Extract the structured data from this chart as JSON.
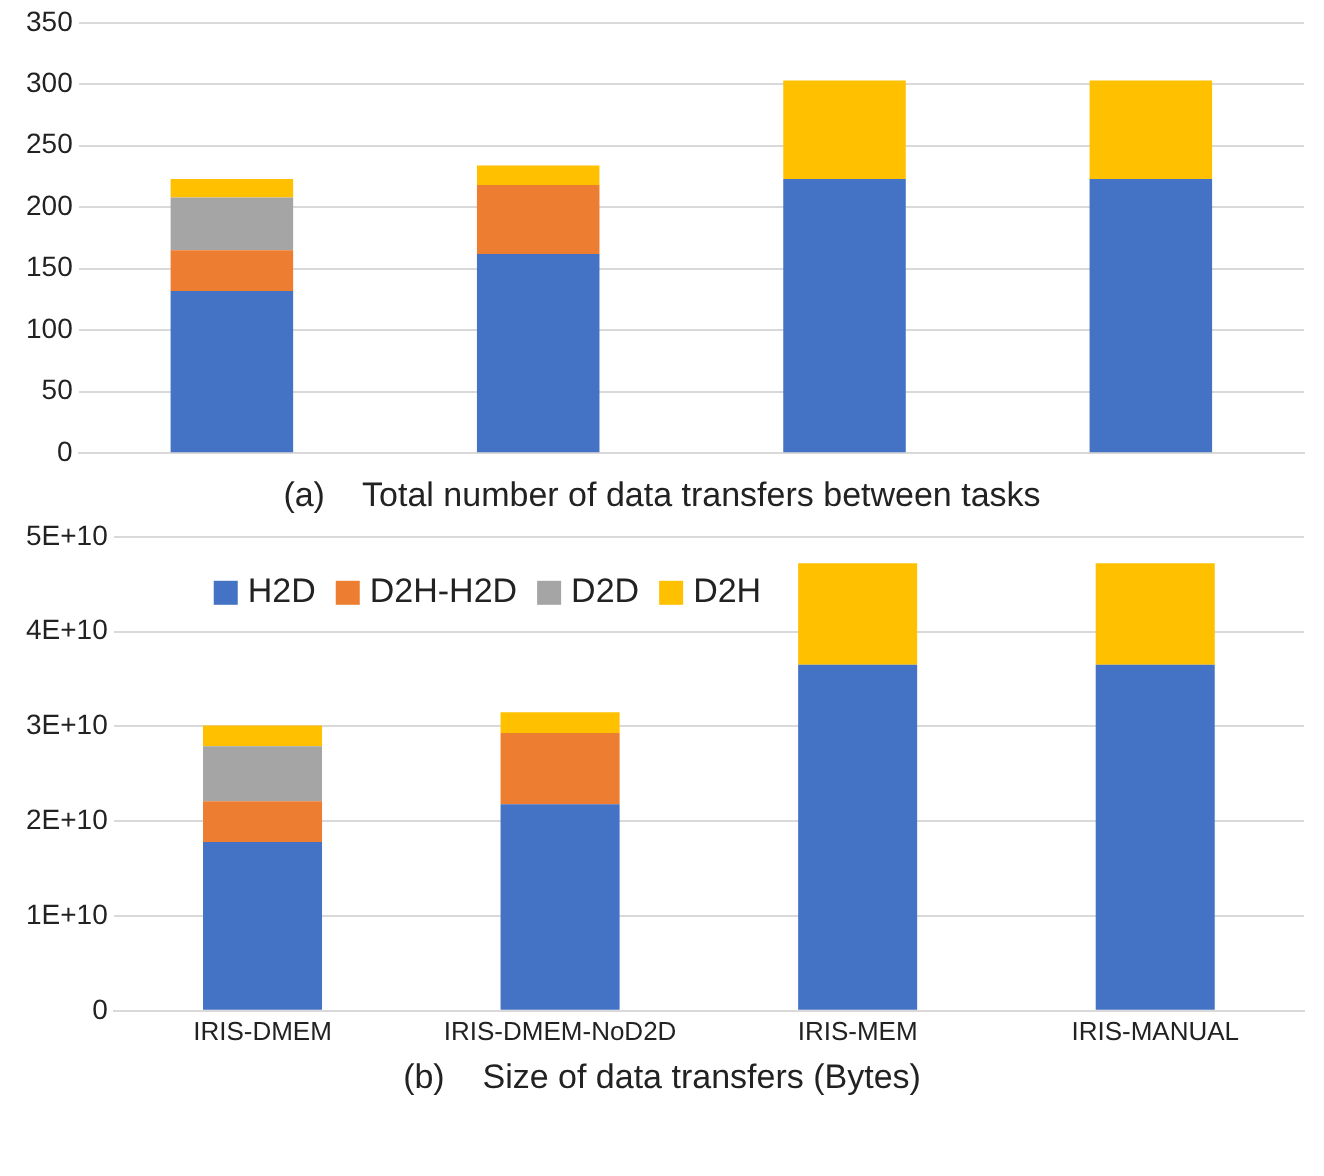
{
  "chart_data": [
    {
      "type": "bar",
      "stacked": true,
      "title": "(a)    Total number of data transfers between tasks",
      "categories": [
        null,
        null,
        null,
        null
      ],
      "tick_labels": "y",
      "grid": "y",
      "legend": false,
      "ylim": [
        0,
        350
      ],
      "yticks": [
        0,
        50,
        100,
        150,
        200,
        250,
        300,
        350
      ],
      "series": [
        {
          "color": "#4472c4",
          "values": [
            132,
            162,
            223,
            223
          ]
        },
        {
          "color": "#ed7d31",
          "values": [
            33,
            56,
            null,
            null
          ]
        },
        {
          "color": "#a5a5a5",
          "values": [
            43,
            null,
            null,
            null
          ]
        },
        {
          "color": "#ffc000",
          "values": [
            15,
            16,
            80,
            80
          ]
        }
      ]
    },
    {
      "type": "bar",
      "stacked": true,
      "title": "(b)    Size of data transfers (Bytes)",
      "categories": [
        "IRIS-DMEM",
        "IRIS-DMEM-NoD2D",
        "IRIS-MEM",
        "IRIS-MANUAL"
      ],
      "grid": "y",
      "legend": "top left",
      "ylim": [
        0,
        50000000000
      ],
      "yticks": [
        0,
        {
          "value": 10000000000,
          "label": "1E+10"
        },
        {
          "value": 20000000000,
          "label": "2E+10"
        },
        {
          "value": 30000000000,
          "label": "3E+10"
        },
        {
          "value": 40000000000,
          "label": "4E+10"
        },
        {
          "value": 50000000000,
          "label": "5E+10"
        }
      ],
      "series": [
        {
          "name": "H2D",
          "color": "#4472c4",
          "values": [
            17800000000,
            21800000000,
            36500000000,
            36500000000
          ]
        },
        {
          "name": "D2H-H2D",
          "color": "#ed7d31",
          "values": [
            4300000000,
            7500000000,
            null,
            null
          ]
        },
        {
          "name": "D2D",
          "color": "#a5a5a5",
          "values": [
            5800000000,
            null,
            null,
            null
          ]
        },
        {
          "name": "D2H",
          "color": "#ffc000",
          "values": [
            2200000000,
            2200000000,
            10700000000,
            10700000000
          ]
        }
      ]
    }
  ]
}
